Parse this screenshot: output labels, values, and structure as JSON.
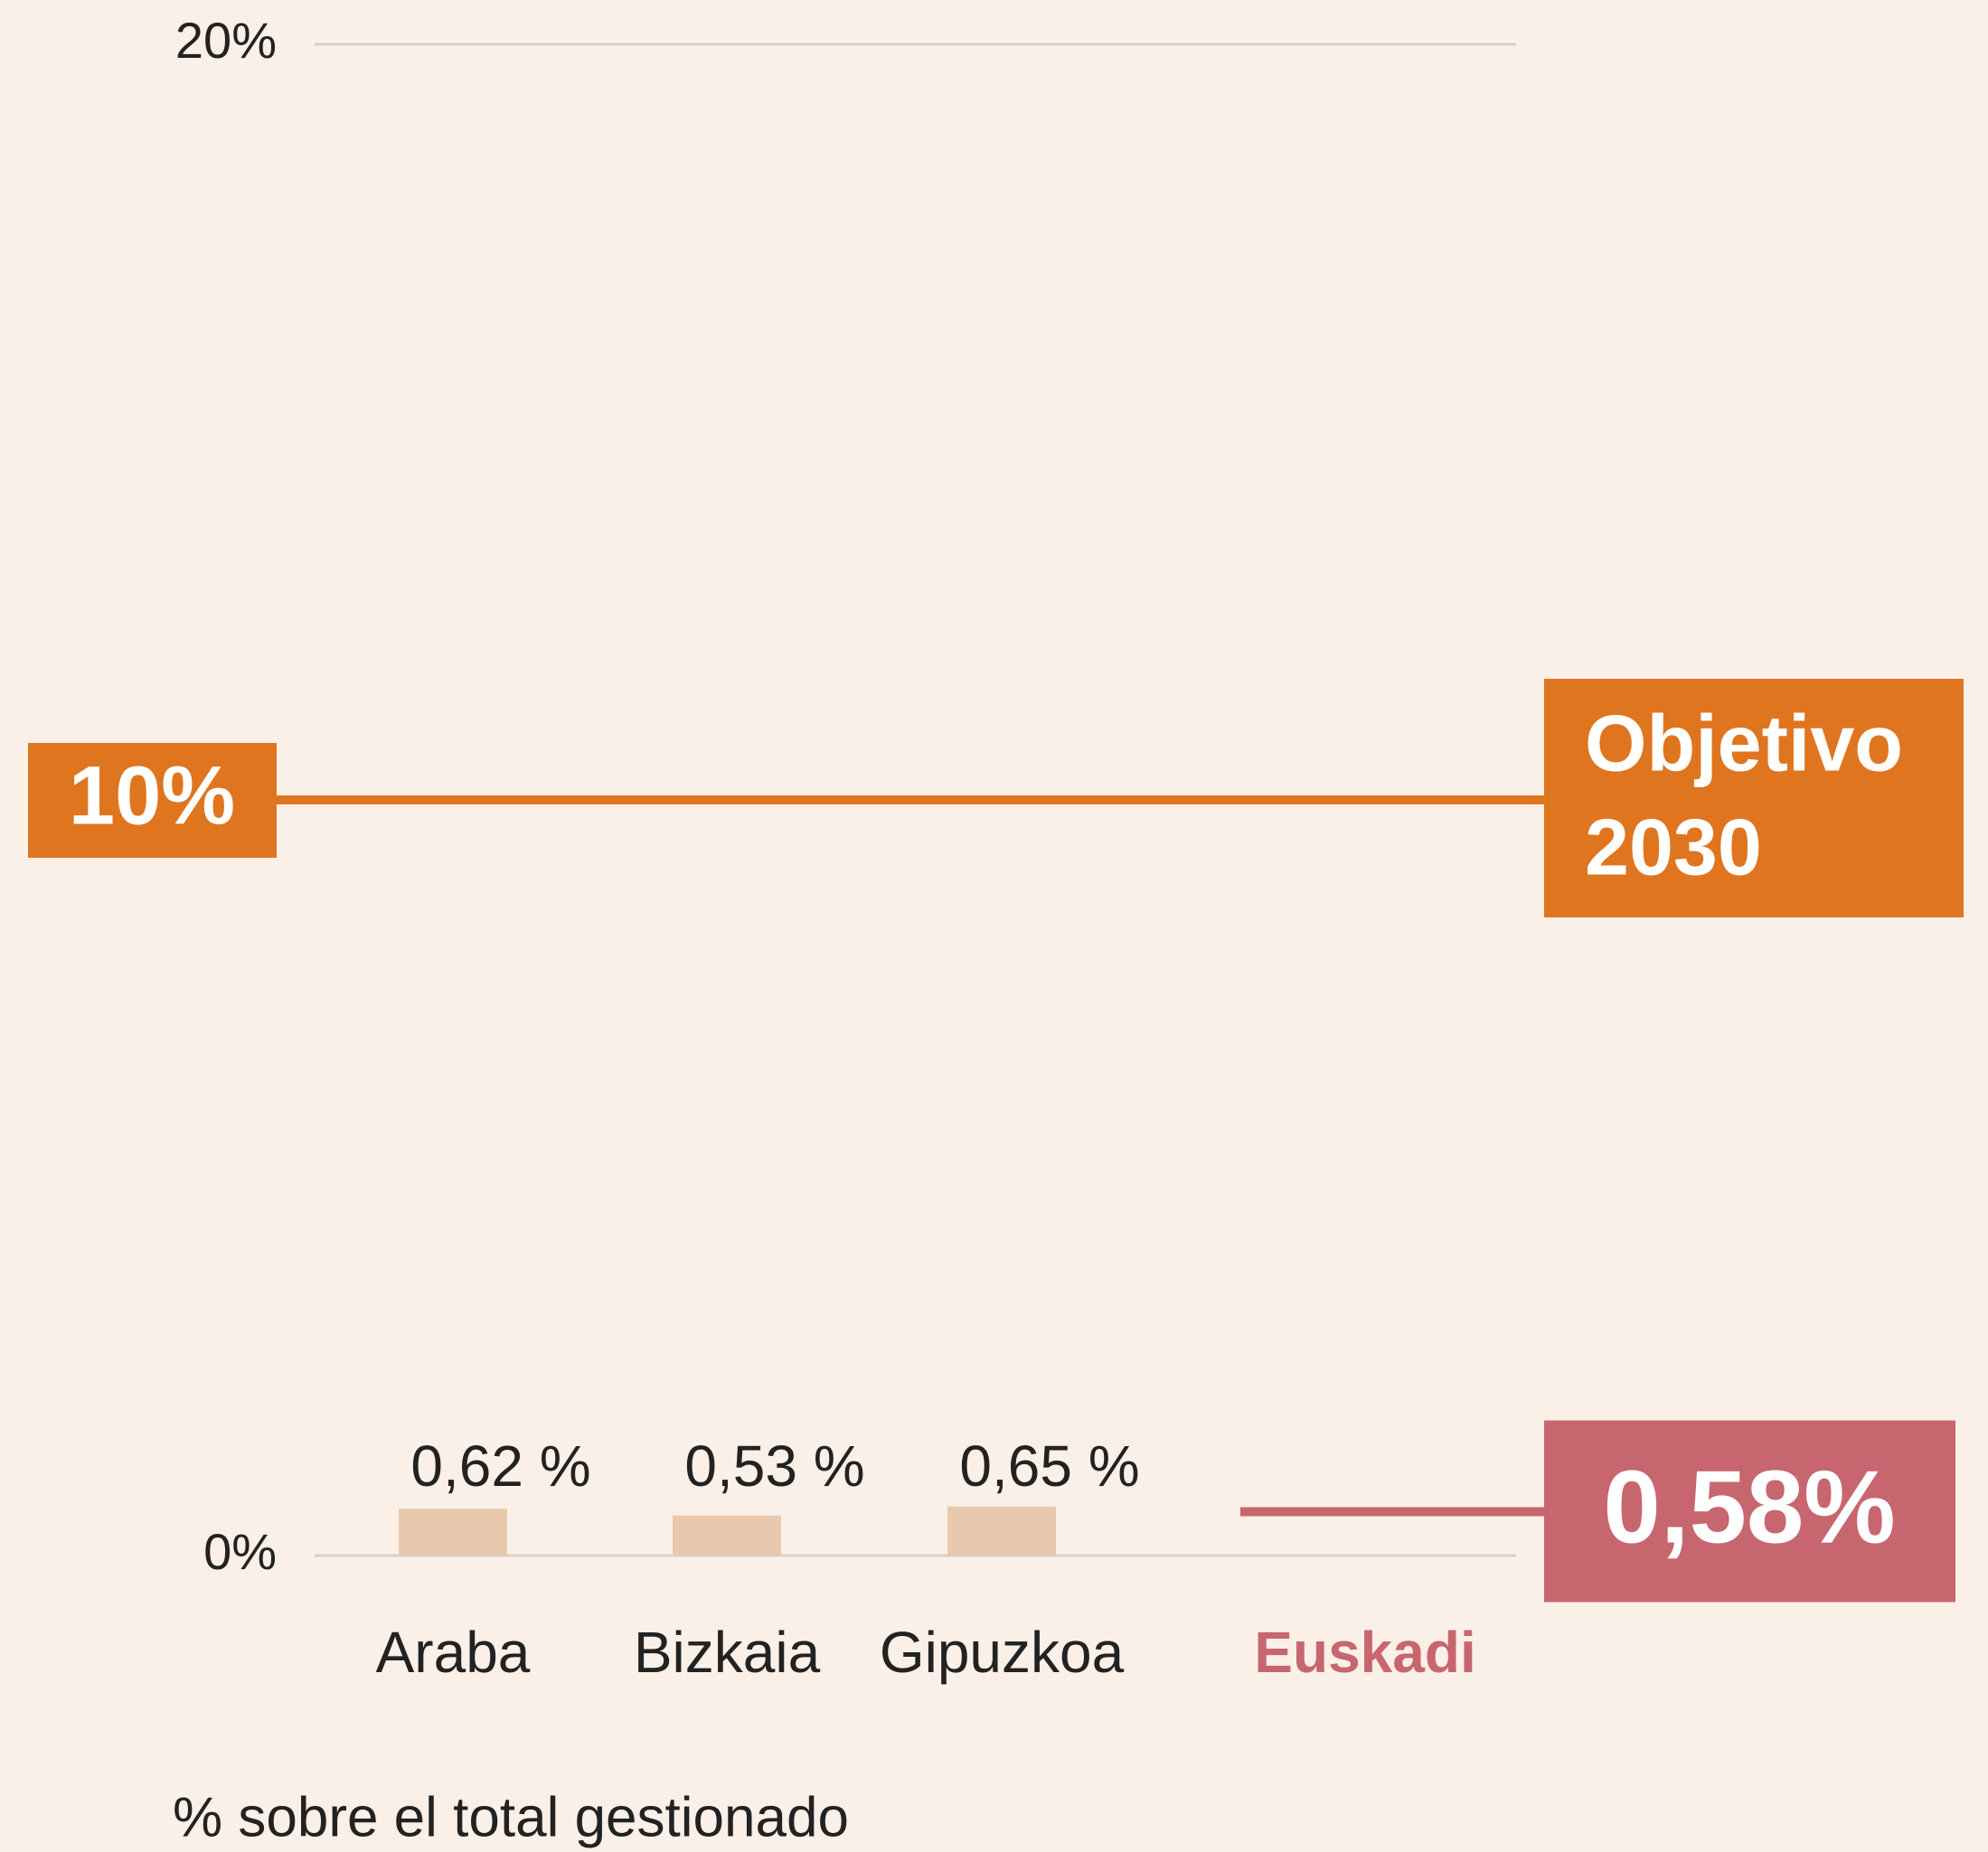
{
  "chart_data": {
    "type": "bar",
    "categories": [
      "Araba",
      "Bizkaia",
      "Gipuzkoa",
      "Euskadi"
    ],
    "values": [
      0.62,
      0.53,
      0.65,
      0.58
    ],
    "value_labels": [
      "0,62 %",
      "0,53 %",
      "0,65 %",
      "0,58%"
    ],
    "colors": [
      "#e8c9ae",
      "#e8c9ae",
      "#e8c9ae",
      "#c86670"
    ],
    "ylim": [
      0,
      20
    ],
    "yticks": [
      {
        "value": 0,
        "label": "0%"
      },
      {
        "value": 20,
        "label": "20%"
      }
    ],
    "grid": true,
    "target": {
      "value": 10,
      "label": "10%",
      "text": [
        "Objetivo",
        "2030"
      ],
      "color": "#e07520"
    },
    "footnote": "% sobre el total gestionado"
  }
}
